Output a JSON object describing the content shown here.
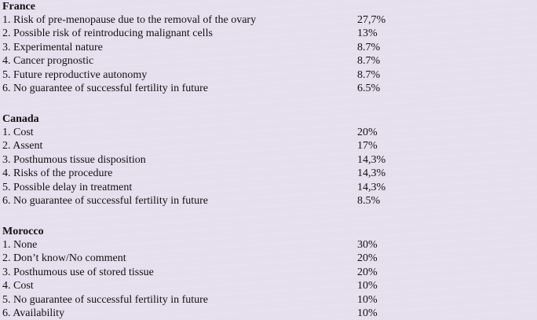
{
  "sections": [
    {
      "title": "France",
      "items": [
        {
          "label": "1. Risk of pre-menopause due to the removal of the ovary",
          "value": "27,7%"
        },
        {
          "label": "2. Possible risk of reintroducing malignant cells",
          "value": "13%"
        },
        {
          "label": "3. Experimental nature",
          "value": "8.7%"
        },
        {
          "label": "4. Cancer prognostic",
          "value": "8.7%"
        },
        {
          "label": "5. Future reproductive autonomy",
          "value": "8.7%"
        },
        {
          "label": "6. No guarantee of successful fertility in future",
          "value": "6.5%"
        }
      ]
    },
    {
      "title": "Canada",
      "items": [
        {
          "label": "1. Cost",
          "value": "20%"
        },
        {
          "label": "2. Assent",
          "value": "17%"
        },
        {
          "label": "3. Posthumous tissue disposition",
          "value": "14,3%"
        },
        {
          "label": "4. Risks of the procedure",
          "value": "14,3%"
        },
        {
          "label": "5. Possible delay in treatment",
          "value": "14,3%"
        },
        {
          "label": "6. No guarantee of successful fertility in future",
          "value": "8.5%"
        }
      ]
    },
    {
      "title": "Morocco",
      "items": [
        {
          "label": "1. None",
          "value": "30%"
        },
        {
          "label": "2. Don’t know/No comment",
          "value": "20%"
        },
        {
          "label": "3. Posthumous use of stored tissue",
          "value": "20%"
        },
        {
          "label": "4. Cost",
          "value": "10%"
        },
        {
          "label": "5. No guarantee of successful fertility in future",
          "value": "10%"
        },
        {
          "label": "6. Availability",
          "value": "10%"
        }
      ]
    }
  ],
  "colors": {
    "background": "#e6dfee",
    "text": "#111111"
  }
}
